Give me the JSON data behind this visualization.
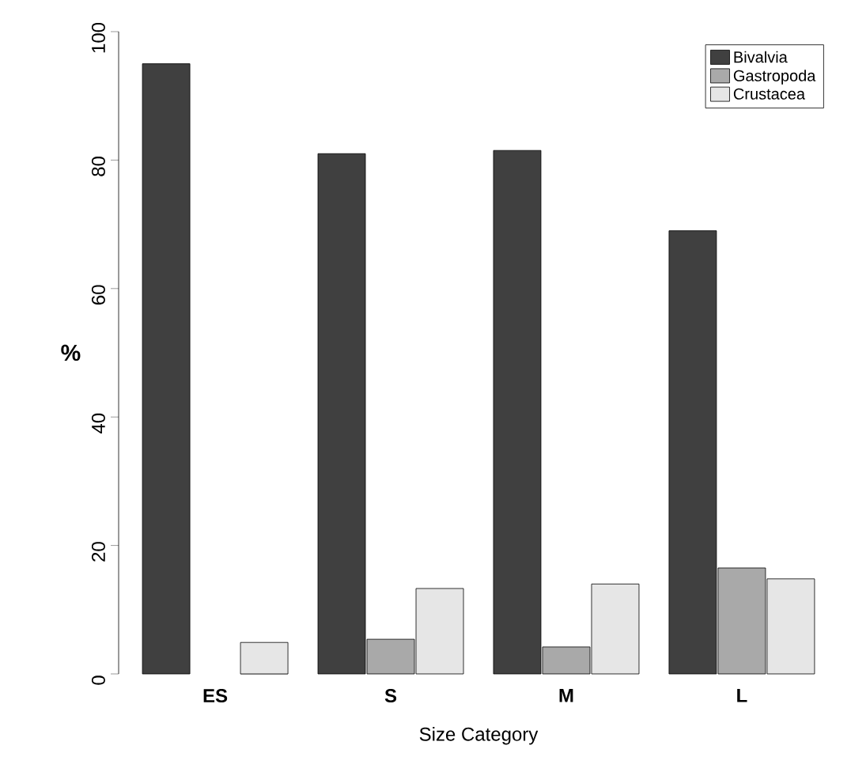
{
  "chart_data": {
    "type": "bar",
    "xlabel": "Size Category",
    "ylabel": "%",
    "categories": [
      "ES",
      "S",
      "M",
      "L"
    ],
    "series": [
      {
        "name": "Bivalvia",
        "color": "#404040",
        "values": [
          95,
          81,
          81.5,
          69
        ]
      },
      {
        "name": "Gastropoda",
        "color": "#a9a9a9",
        "values": [
          0,
          5.4,
          4.2,
          16.5
        ]
      },
      {
        "name": "Crustacea",
        "color": "#e6e6e6",
        "values": [
          4.9,
          13.3,
          14,
          14.8
        ]
      }
    ],
    "ylim": [
      0,
      100
    ],
    "yticks": [
      0,
      20,
      40,
      60,
      80,
      100
    ],
    "grid": false,
    "legend": "top right"
  }
}
